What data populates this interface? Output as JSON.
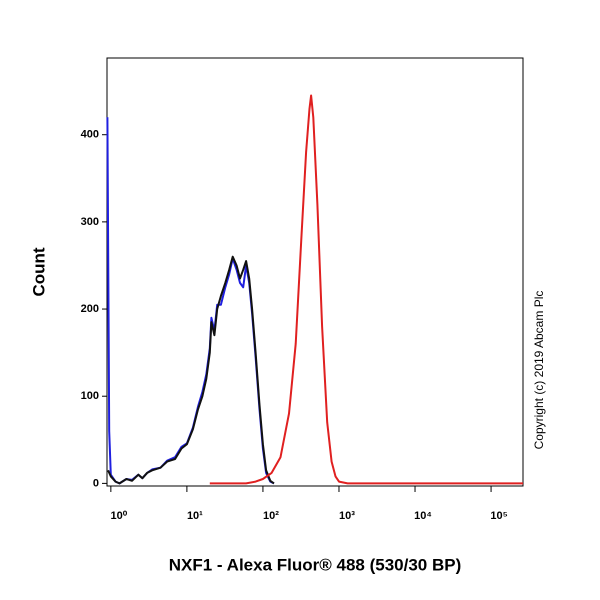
{
  "chart_data": {
    "type": "line",
    "xscale": "log",
    "xlabel": "NXF1 - Alexa Fluor® 488 (530/30 BP)",
    "ylabel": "Count",
    "annotation": "Copyright (c) 2019 Abcam Plc",
    "xlim": [
      0.89,
      263000
    ],
    "ylim": [
      -3,
      488
    ],
    "xticks": [
      {
        "value": 1,
        "label": "10⁰"
      },
      {
        "value": 10,
        "label": "10¹"
      },
      {
        "value": 100,
        "label": "10²"
      },
      {
        "value": 1000,
        "label": "10³"
      },
      {
        "value": 10000,
        "label": "10⁴"
      },
      {
        "value": 100000,
        "label": "10⁵"
      }
    ],
    "yticks": [
      0,
      100,
      200,
      300,
      400
    ],
    "series": [
      {
        "color": "#1f1fe0",
        "x": [
          0.9,
          0.95,
          1.0,
          1.15,
          1.3,
          1.6,
          1.9,
          2.3,
          2.6,
          3.0,
          3.5,
          4.5,
          5.5,
          7,
          8.5,
          10,
          12,
          14,
          16,
          18,
          20,
          21,
          23,
          25,
          28,
          32,
          36,
          40,
          45,
          50,
          55,
          60,
          66,
          72,
          80,
          90,
          100,
          110,
          125,
          140
        ],
        "values": [
          420,
          60,
          10,
          2,
          0,
          5,
          4,
          10,
          6,
          12,
          16,
          18,
          26,
          30,
          42,
          46,
          64,
          88,
          105,
          125,
          155,
          190,
          175,
          205,
          205,
          225,
          240,
          258,
          245,
          230,
          225,
          250,
          230,
          195,
          145,
          85,
          40,
          12,
          2,
          0
        ]
      },
      {
        "color": "#111111",
        "x": [
          0.92,
          1.0,
          1.15,
          1.3,
          1.6,
          1.9,
          2.3,
          2.6,
          3.0,
          3.5,
          4.5,
          5.5,
          7,
          8.5,
          10,
          12,
          14,
          16,
          18,
          20,
          21,
          23,
          25,
          28,
          32,
          36,
          40,
          45,
          50,
          55,
          60,
          66,
          72,
          80,
          90,
          100,
          110,
          125,
          140
        ],
        "values": [
          15,
          8,
          2,
          0,
          5,
          3,
          10,
          6,
          12,
          15,
          18,
          25,
          28,
          40,
          45,
          62,
          85,
          100,
          120,
          150,
          185,
          170,
          200,
          215,
          230,
          245,
          260,
          250,
          235,
          245,
          255,
          235,
          200,
          150,
          90,
          45,
          15,
          3,
          0
        ]
      },
      {
        "color": "#e02020",
        "x": [
          20,
          60,
          80,
          100,
          130,
          170,
          220,
          270,
          320,
          370,
          410,
          430,
          460,
          520,
          600,
          700,
          800,
          900,
          1000,
          1300,
          5000,
          263000
        ],
        "values": [
          0,
          0,
          2,
          5,
          12,
          30,
          80,
          160,
          280,
          380,
          430,
          445,
          420,
          320,
          180,
          70,
          25,
          8,
          2,
          0,
          0,
          0
        ]
      }
    ]
  }
}
